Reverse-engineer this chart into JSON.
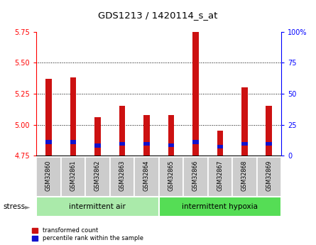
{
  "title": "GDS1213 / 1420114_s_at",
  "samples": [
    "GSM32860",
    "GSM32861",
    "GSM32862",
    "GSM32863",
    "GSM32864",
    "GSM32865",
    "GSM32866",
    "GSM32867",
    "GSM32868",
    "GSM32869"
  ],
  "bar_base": 4.75,
  "red_tops": [
    5.37,
    5.38,
    5.06,
    5.15,
    5.08,
    5.08,
    5.75,
    4.95,
    5.3,
    5.15
  ],
  "blue_bottom": [
    4.845,
    4.845,
    4.815,
    4.828,
    4.828,
    4.818,
    4.845,
    4.808,
    4.828,
    4.828
  ],
  "blue_tops": [
    4.878,
    4.878,
    4.848,
    4.858,
    4.858,
    4.848,
    4.878,
    4.838,
    4.858,
    4.858
  ],
  "ylim_left": [
    4.75,
    5.75
  ],
  "ylim_right": [
    0,
    100
  ],
  "yticks_left": [
    4.75,
    5.0,
    5.25,
    5.5,
    5.75
  ],
  "yticks_right": [
    0,
    25,
    50,
    75,
    100
  ],
  "ytick_labels_right": [
    "0",
    "25",
    "50",
    "75",
    "100%"
  ],
  "hlines": [
    5.0,
    5.25,
    5.5
  ],
  "groups": [
    {
      "label": "intermittent air",
      "start": 0,
      "end": 5,
      "color": "#aaeaaa"
    },
    {
      "label": "intermittent hypoxia",
      "start": 5,
      "end": 10,
      "color": "#55dd55"
    }
  ],
  "group_label": "stress",
  "bar_width": 0.25,
  "bar_color_red": "#cc1111",
  "bar_color_blue": "#1111cc",
  "bg_color": "#ffffff",
  "tick_label_area_color": "#cccccc",
  "legend_red": "transformed count",
  "legend_blue": "percentile rank within the sample"
}
